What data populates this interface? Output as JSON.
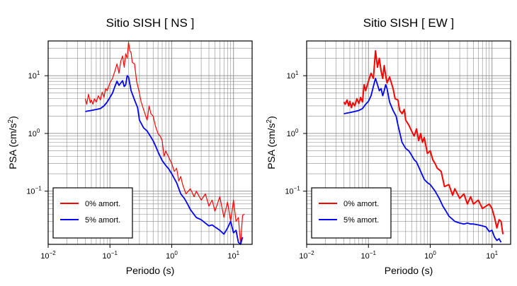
{
  "chart_data": [
    {
      "type": "line",
      "title": "Sitio SISH [ NS ]",
      "xlabel": "Periodo (s)",
      "ylabel_main": "PSA (cm/s",
      "ylabel_sup": "2",
      "ylabel_tail": ")",
      "x_scale": "log",
      "y_scale": "log",
      "xlim": [
        0.01,
        20
      ],
      "ylim": [
        0.012,
        40
      ],
      "grid": true,
      "legend_position": "bottom-left",
      "x_ticks": [
        {
          "base": "10",
          "exp": "−2",
          "value": 0.01
        },
        {
          "base": "10",
          "exp": "−1",
          "value": 0.1
        },
        {
          "base": "10",
          "exp": "0",
          "value": 1
        },
        {
          "base": "10",
          "exp": "1",
          "value": 10
        }
      ],
      "y_ticks": [
        {
          "base": "10",
          "exp": "−1",
          "value": 0.1
        },
        {
          "base": "10",
          "exp": "0",
          "value": 1
        },
        {
          "base": "10",
          "exp": "1",
          "value": 10
        }
      ],
      "series": [
        {
          "name": "0% amort.",
          "color": "#ff0000",
          "x": [
            0.04,
            0.042,
            0.045,
            0.048,
            0.05,
            0.053,
            0.056,
            0.06,
            0.065,
            0.07,
            0.075,
            0.08,
            0.085,
            0.09,
            0.1,
            0.11,
            0.12,
            0.13,
            0.14,
            0.15,
            0.16,
            0.17,
            0.18,
            0.19,
            0.2,
            0.21,
            0.22,
            0.23,
            0.25,
            0.27,
            0.3,
            0.32,
            0.35,
            0.38,
            0.4,
            0.43,
            0.46,
            0.5,
            0.55,
            0.6,
            0.65,
            0.7,
            0.75,
            0.8,
            0.9,
            1.0,
            1.1,
            1.2,
            1.3,
            1.4,
            1.5,
            1.7,
            2.0,
            2.3,
            2.5,
            3.0,
            3.5,
            4.0,
            4.5,
            5.0,
            6.0,
            7.0,
            8.0,
            9.0,
            10.0,
            11.0,
            12.0,
            13.0,
            14.0,
            15.0
          ],
          "y": [
            4.0,
            3.2,
            4.8,
            3.4,
            3.8,
            3.2,
            4.0,
            3.5,
            4.5,
            3.8,
            5.2,
            4.2,
            6.0,
            5.5,
            7.5,
            9.0,
            12.0,
            16.0,
            11.0,
            18.0,
            22.0,
            14.0,
            24.0,
            20.0,
            38.0,
            27.0,
            25.0,
            17.0,
            16.0,
            8.0,
            5.0,
            3.5,
            2.6,
            2.0,
            1.7,
            3.0,
            2.2,
            2.0,
            1.3,
            1.0,
            0.9,
            0.75,
            0.4,
            0.5,
            0.38,
            0.3,
            0.22,
            0.25,
            0.15,
            0.18,
            0.13,
            0.09,
            0.11,
            0.08,
            0.1,
            0.07,
            0.09,
            0.055,
            0.07,
            0.045,
            0.08,
            0.035,
            0.065,
            0.03,
            0.07,
            0.03,
            0.035,
            0.012,
            0.038,
            0.04
          ]
        },
        {
          "name": "5% amort.",
          "color": "#0000ff",
          "x": [
            0.04,
            0.05,
            0.06,
            0.07,
            0.08,
            0.09,
            0.1,
            0.11,
            0.12,
            0.13,
            0.14,
            0.15,
            0.16,
            0.17,
            0.18,
            0.19,
            0.2,
            0.22,
            0.25,
            0.28,
            0.3,
            0.35,
            0.4,
            0.45,
            0.5,
            0.55,
            0.6,
            0.7,
            0.8,
            0.9,
            1.0,
            1.2,
            1.4,
            1.6,
            1.8,
            2.0,
            2.5,
            3.0,
            3.5,
            4.0,
            4.5,
            5.0,
            6.0,
            7.0,
            8.0,
            9.0,
            10.0,
            11.0,
            12.0,
            13.0,
            14.0
          ],
          "y": [
            2.4,
            2.5,
            2.6,
            2.7,
            3.0,
            3.5,
            4.2,
            5.0,
            6.5,
            8.0,
            6.8,
            7.5,
            8.2,
            6.5,
            7.0,
            10.0,
            9.5,
            5.5,
            3.8,
            2.8,
            1.7,
            1.25,
            1.1,
            0.9,
            0.75,
            0.6,
            0.48,
            0.34,
            0.28,
            0.24,
            0.2,
            0.14,
            0.09,
            0.075,
            0.06,
            0.048,
            0.035,
            0.032,
            0.028,
            0.025,
            0.026,
            0.024,
            0.021,
            0.018,
            0.023,
            0.03,
            0.019,
            0.021,
            0.013,
            0.012,
            0.016
          ]
        }
      ]
    },
    {
      "type": "line",
      "title": "Sitio SISH [ EW ]",
      "xlabel": "Periodo (s)",
      "ylabel_main": "PSA (cm/s",
      "ylabel_sup": "2",
      "ylabel_tail": ")",
      "x_scale": "log",
      "y_scale": "log",
      "xlim": [
        0.01,
        20
      ],
      "ylim": [
        0.012,
        40
      ],
      "grid": true,
      "legend_position": "bottom-left",
      "x_ticks": [
        {
          "base": "10",
          "exp": "−2",
          "value": 0.01
        },
        {
          "base": "10",
          "exp": "−1",
          "value": 0.1
        },
        {
          "base": "10",
          "exp": "0",
          "value": 1
        },
        {
          "base": "10",
          "exp": "1",
          "value": 10
        }
      ],
      "y_ticks": [
        {
          "base": "10",
          "exp": "−1",
          "value": 0.1
        },
        {
          "base": "10",
          "exp": "0",
          "value": 1
        },
        {
          "base": "10",
          "exp": "1",
          "value": 10
        }
      ],
      "series": [
        {
          "name": "0% amort.",
          "color": "#ff0000",
          "x": [
            0.04,
            0.042,
            0.045,
            0.048,
            0.05,
            0.053,
            0.056,
            0.06,
            0.065,
            0.07,
            0.075,
            0.08,
            0.085,
            0.09,
            0.1,
            0.11,
            0.12,
            0.13,
            0.14,
            0.15,
            0.16,
            0.17,
            0.18,
            0.19,
            0.2,
            0.22,
            0.25,
            0.27,
            0.3,
            0.32,
            0.35,
            0.38,
            0.4,
            0.45,
            0.5,
            0.55,
            0.6,
            0.65,
            0.7,
            0.75,
            0.8,
            0.9,
            1.0,
            1.1,
            1.2,
            1.3,
            1.5,
            1.7,
            2.0,
            2.3,
            2.5,
            3.0,
            3.5,
            4.0,
            4.5,
            5.0,
            6.0,
            7.0,
            8.0,
            9.0,
            10.0,
            11.0,
            12.0,
            13.0,
            14.0,
            15.0
          ],
          "y": [
            3.5,
            3.2,
            3.8,
            3.0,
            3.6,
            2.8,
            3.4,
            3.0,
            4.0,
            3.3,
            4.2,
            3.5,
            7.0,
            5.5,
            8.0,
            11.0,
            9.0,
            27.0,
            14.0,
            20.0,
            12.0,
            9.0,
            15.0,
            10.0,
            7.5,
            9.5,
            6.0,
            4.0,
            3.8,
            2.5,
            2.2,
            2.6,
            1.7,
            1.4,
            1.1,
            0.9,
            1.2,
            0.75,
            1.0,
            0.7,
            0.85,
            0.45,
            0.5,
            0.35,
            0.3,
            0.25,
            0.22,
            0.12,
            0.13,
            0.085,
            0.11,
            0.075,
            0.09,
            0.06,
            0.08,
            0.06,
            0.07,
            0.05,
            0.055,
            0.06,
            0.05,
            0.035,
            0.023,
            0.032,
            0.03,
            0.018
          ]
        },
        {
          "name": "5% amort.",
          "color": "#0000ff",
          "x": [
            0.04,
            0.05,
            0.06,
            0.07,
            0.08,
            0.09,
            0.1,
            0.11,
            0.12,
            0.13,
            0.14,
            0.15,
            0.16,
            0.17,
            0.18,
            0.19,
            0.2,
            0.22,
            0.25,
            0.28,
            0.3,
            0.35,
            0.4,
            0.45,
            0.5,
            0.55,
            0.6,
            0.7,
            0.8,
            0.9,
            1.0,
            1.2,
            1.4,
            1.6,
            1.8,
            2.0,
            2.5,
            3.0,
            3.5,
            4.0,
            4.5,
            5.0,
            6.0,
            7.0,
            8.0,
            9.0,
            10.0,
            11.0,
            12.0,
            13.0,
            14.0
          ],
          "y": [
            2.2,
            2.3,
            2.4,
            2.5,
            2.7,
            3.2,
            3.6,
            4.5,
            6.5,
            9.0,
            7.0,
            5.5,
            6.0,
            4.5,
            5.5,
            7.0,
            6.0,
            3.5,
            2.5,
            2.0,
            1.4,
            0.7,
            0.55,
            0.5,
            0.42,
            0.35,
            0.32,
            0.22,
            0.16,
            0.14,
            0.13,
            0.1,
            0.075,
            0.055,
            0.045,
            0.037,
            0.03,
            0.028,
            0.027,
            0.028,
            0.027,
            0.027,
            0.026,
            0.025,
            0.024,
            0.02,
            0.021,
            0.016,
            0.014,
            0.015,
            0.013
          ]
        }
      ]
    }
  ]
}
